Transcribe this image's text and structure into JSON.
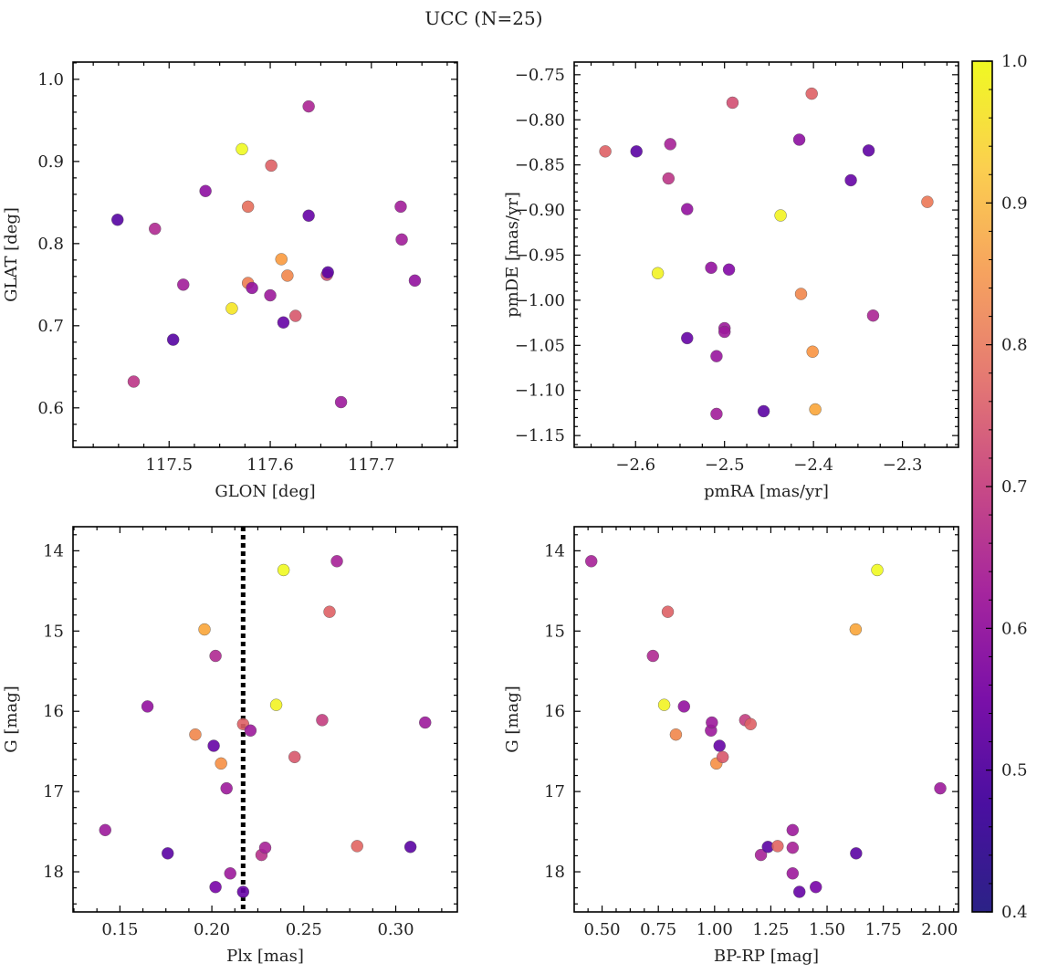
{
  "figure": {
    "title": "UCC (N=25)"
  },
  "colorbar": {
    "min": 0.4,
    "max": 1.0,
    "ticks": [
      0.4,
      0.5,
      0.6,
      0.7,
      0.8,
      0.9,
      1.0
    ],
    "tick_labels": [
      "0.4",
      "0.5",
      "0.6",
      "0.7",
      "0.8",
      "0.9",
      "1.0"
    ],
    "colormap": "plasma"
  },
  "chart_data": [
    {
      "id": "glon-glat",
      "type": "scatter",
      "xlabel": "GLON [deg]",
      "ylabel": "GLAT [deg]",
      "xlim": [
        117.405,
        117.785
      ],
      "ylim": [
        0.552,
        1.021
      ],
      "xticks": [
        117.5,
        117.6,
        117.7
      ],
      "xtick_labels": [
        "117.5",
        "117.6",
        "117.7"
      ],
      "yticks": [
        0.6,
        0.7,
        0.8,
        0.9,
        1.0
      ],
      "ytick_labels": [
        "0.6",
        "0.7",
        "0.8",
        "0.9",
        "1.0"
      ],
      "y_inverted": false,
      "points": [
        {
          "x": 117.449,
          "y": 0.829,
          "c": 0.42
        },
        {
          "x": 117.486,
          "y": 0.818,
          "c": 0.59
        },
        {
          "x": 117.465,
          "y": 0.632,
          "c": 0.62
        },
        {
          "x": 117.504,
          "y": 0.683,
          "c": 0.42
        },
        {
          "x": 117.514,
          "y": 0.75,
          "c": 0.56
        },
        {
          "x": 117.536,
          "y": 0.864,
          "c": 0.52
        },
        {
          "x": 117.562,
          "y": 0.721,
          "c": 0.97
        },
        {
          "x": 117.572,
          "y": 0.915,
          "c": 1.0
        },
        {
          "x": 117.578,
          "y": 0.845,
          "c": 0.75
        },
        {
          "x": 117.578,
          "y": 0.752,
          "c": 0.78
        },
        {
          "x": 117.582,
          "y": 0.746,
          "c": 0.53
        },
        {
          "x": 117.6,
          "y": 0.737,
          "c": 0.55
        },
        {
          "x": 117.601,
          "y": 0.895,
          "c": 0.72
        },
        {
          "x": 117.611,
          "y": 0.781,
          "c": 0.84
        },
        {
          "x": 117.613,
          "y": 0.704,
          "c": 0.45
        },
        {
          "x": 117.617,
          "y": 0.761,
          "c": 0.8
        },
        {
          "x": 117.625,
          "y": 0.712,
          "c": 0.7
        },
        {
          "x": 117.638,
          "y": 0.967,
          "c": 0.58
        },
        {
          "x": 117.638,
          "y": 0.834,
          "c": 0.45
        },
        {
          "x": 117.656,
          "y": 0.762,
          "c": 0.68
        },
        {
          "x": 117.657,
          "y": 0.765,
          "c": 0.43
        },
        {
          "x": 117.67,
          "y": 0.607,
          "c": 0.55
        },
        {
          "x": 117.729,
          "y": 0.845,
          "c": 0.56
        },
        {
          "x": 117.73,
          "y": 0.805,
          "c": 0.56
        },
        {
          "x": 117.743,
          "y": 0.755,
          "c": 0.53
        }
      ]
    },
    {
      "id": "pmra-pmde",
      "type": "scatter",
      "xlabel": "pmRA [mas/yr]",
      "ylabel": "pmDE [mas/yr]",
      "xlim": [
        -2.669,
        -2.237
      ],
      "ylim": [
        -1.163,
        -0.736
      ],
      "xticks": [
        -2.6,
        -2.5,
        -2.4,
        -2.3
      ],
      "xtick_labels": [
        "−2.6",
        "−2.5",
        "−2.4",
        "−2.3"
      ],
      "yticks": [
        -1.15,
        -1.1,
        -1.05,
        -1.0,
        -0.95,
        -0.9,
        -0.85,
        -0.8,
        -0.75
      ],
      "ytick_labels": [
        "−1.15",
        "−1.10",
        "−1.05",
        "−1.00",
        "−0.95",
        "−0.90",
        "−0.85",
        "−0.80",
        "−0.75"
      ],
      "y_inverted": false,
      "points": [
        {
          "x": -2.634,
          "y": -0.835,
          "c": 0.72
        },
        {
          "x": -2.599,
          "y": -0.835,
          "c": 0.43
        },
        {
          "x": -2.575,
          "y": -0.97,
          "c": 0.99
        },
        {
          "x": -2.561,
          "y": -0.827,
          "c": 0.57
        },
        {
          "x": -2.563,
          "y": -0.865,
          "c": 0.62
        },
        {
          "x": -2.542,
          "y": -0.899,
          "c": 0.53
        },
        {
          "x": -2.542,
          "y": -1.042,
          "c": 0.45
        },
        {
          "x": -2.515,
          "y": -0.964,
          "c": 0.53
        },
        {
          "x": -2.509,
          "y": -1.062,
          "c": 0.54
        },
        {
          "x": -2.509,
          "y": -1.126,
          "c": 0.56
        },
        {
          "x": -2.5,
          "y": -1.031,
          "c": 0.55
        },
        {
          "x": -2.5,
          "y": -1.035,
          "c": 0.55
        },
        {
          "x": -2.495,
          "y": -0.966,
          "c": 0.5
        },
        {
          "x": -2.491,
          "y": -0.781,
          "c": 0.68
        },
        {
          "x": -2.456,
          "y": -1.123,
          "c": 0.43
        },
        {
          "x": -2.437,
          "y": -0.906,
          "c": 0.99
        },
        {
          "x": -2.416,
          "y": -0.822,
          "c": 0.52
        },
        {
          "x": -2.414,
          "y": -0.993,
          "c": 0.8
        },
        {
          "x": -2.402,
          "y": -0.771,
          "c": 0.72
        },
        {
          "x": -2.401,
          "y": -1.057,
          "c": 0.83
        },
        {
          "x": -2.398,
          "y": -1.121,
          "c": 0.86
        },
        {
          "x": -2.358,
          "y": -0.867,
          "c": 0.45
        },
        {
          "x": -2.338,
          "y": -0.834,
          "c": 0.44
        },
        {
          "x": -2.333,
          "y": -1.017,
          "c": 0.58
        },
        {
          "x": -2.272,
          "y": -0.891,
          "c": 0.77
        }
      ]
    },
    {
      "id": "plx-g",
      "type": "scatter",
      "xlabel": "Plx [mas]",
      "ylabel": "G [mag]",
      "xlim": [
        0.1245,
        0.3335
      ],
      "ylim": [
        18.5,
        13.7
      ],
      "xticks": [
        0.15,
        0.2,
        0.25,
        0.3
      ],
      "xtick_labels": [
        "0.15",
        "0.20",
        "0.25",
        "0.30"
      ],
      "yticks": [
        14,
        15,
        16,
        17,
        18
      ],
      "ytick_labels": [
        "14",
        "15",
        "16",
        "17",
        "18"
      ],
      "y_inverted": true,
      "vline": 0.217,
      "points": [
        {
          "x": 0.142,
          "y": 17.48,
          "c": 0.55
        },
        {
          "x": 0.165,
          "y": 15.94,
          "c": 0.53
        },
        {
          "x": 0.176,
          "y": 17.77,
          "c": 0.43
        },
        {
          "x": 0.191,
          "y": 16.29,
          "c": 0.8
        },
        {
          "x": 0.196,
          "y": 14.98,
          "c": 0.86
        },
        {
          "x": 0.201,
          "y": 16.43,
          "c": 0.45
        },
        {
          "x": 0.202,
          "y": 15.31,
          "c": 0.59
        },
        {
          "x": 0.202,
          "y": 18.19,
          "c": 0.48
        },
        {
          "x": 0.205,
          "y": 16.65,
          "c": 0.82
        },
        {
          "x": 0.208,
          "y": 16.96,
          "c": 0.55
        },
        {
          "x": 0.21,
          "y": 18.02,
          "c": 0.55
        },
        {
          "x": 0.217,
          "y": 16.16,
          "c": 0.72
        },
        {
          "x": 0.217,
          "y": 18.25,
          "c": 0.45
        },
        {
          "x": 0.221,
          "y": 16.24,
          "c": 0.55
        },
        {
          "x": 0.227,
          "y": 17.79,
          "c": 0.61
        },
        {
          "x": 0.229,
          "y": 17.7,
          "c": 0.57
        },
        {
          "x": 0.235,
          "y": 15.92,
          "c": 0.99
        },
        {
          "x": 0.239,
          "y": 14.24,
          "c": 1.0
        },
        {
          "x": 0.245,
          "y": 16.57,
          "c": 0.7
        },
        {
          "x": 0.26,
          "y": 16.11,
          "c": 0.64
        },
        {
          "x": 0.264,
          "y": 14.76,
          "c": 0.72
        },
        {
          "x": 0.268,
          "y": 14.13,
          "c": 0.57
        },
        {
          "x": 0.279,
          "y": 17.68,
          "c": 0.73
        },
        {
          "x": 0.308,
          "y": 17.69,
          "c": 0.43
        },
        {
          "x": 0.316,
          "y": 16.14,
          "c": 0.55
        }
      ]
    },
    {
      "id": "bprp-g",
      "type": "scatter",
      "xlabel": "BP-RP [mag]",
      "ylabel": "G [mag]",
      "xlim": [
        0.376,
        2.084
      ],
      "ylim": [
        18.5,
        13.7
      ],
      "xticks": [
        0.5,
        0.75,
        1.0,
        1.25,
        1.5,
        1.75,
        2.0
      ],
      "xtick_labels": [
        "0.50",
        "0.75",
        "1.00",
        "1.25",
        "1.50",
        "1.75",
        "2.00"
      ],
      "yticks": [
        14,
        15,
        16,
        17,
        18
      ],
      "ytick_labels": [
        "14",
        "15",
        "16",
        "17",
        "18"
      ],
      "y_inverted": true,
      "points": [
        {
          "x": 0.452,
          "y": 14.13,
          "c": 0.57
        },
        {
          "x": 0.726,
          "y": 15.31,
          "c": 0.59
        },
        {
          "x": 0.776,
          "y": 15.92,
          "c": 0.99
        },
        {
          "x": 0.792,
          "y": 14.76,
          "c": 0.72
        },
        {
          "x": 0.828,
          "y": 16.29,
          "c": 0.8
        },
        {
          "x": 0.864,
          "y": 15.94,
          "c": 0.53
        },
        {
          "x": 0.984,
          "y": 16.24,
          "c": 0.55
        },
        {
          "x": 0.988,
          "y": 16.14,
          "c": 0.55
        },
        {
          "x": 1.008,
          "y": 16.65,
          "c": 0.82
        },
        {
          "x": 1.022,
          "y": 16.43,
          "c": 0.45
        },
        {
          "x": 1.036,
          "y": 16.57,
          "c": 0.7
        },
        {
          "x": 1.136,
          "y": 16.11,
          "c": 0.64
        },
        {
          "x": 1.16,
          "y": 16.16,
          "c": 0.72
        },
        {
          "x": 1.206,
          "y": 17.79,
          "c": 0.57
        },
        {
          "x": 1.237,
          "y": 17.69,
          "c": 0.43
        },
        {
          "x": 1.28,
          "y": 17.68,
          "c": 0.73
        },
        {
          "x": 1.347,
          "y": 17.48,
          "c": 0.55
        },
        {
          "x": 1.347,
          "y": 17.7,
          "c": 0.57
        },
        {
          "x": 1.347,
          "y": 18.02,
          "c": 0.55
        },
        {
          "x": 1.377,
          "y": 18.25,
          "c": 0.45
        },
        {
          "x": 1.45,
          "y": 18.19,
          "c": 0.48
        },
        {
          "x": 1.629,
          "y": 17.77,
          "c": 0.43
        },
        {
          "x": 1.627,
          "y": 14.98,
          "c": 0.86
        },
        {
          "x": 1.723,
          "y": 14.24,
          "c": 1.0
        },
        {
          "x": 2.003,
          "y": 16.96,
          "c": 0.55
        }
      ]
    }
  ]
}
